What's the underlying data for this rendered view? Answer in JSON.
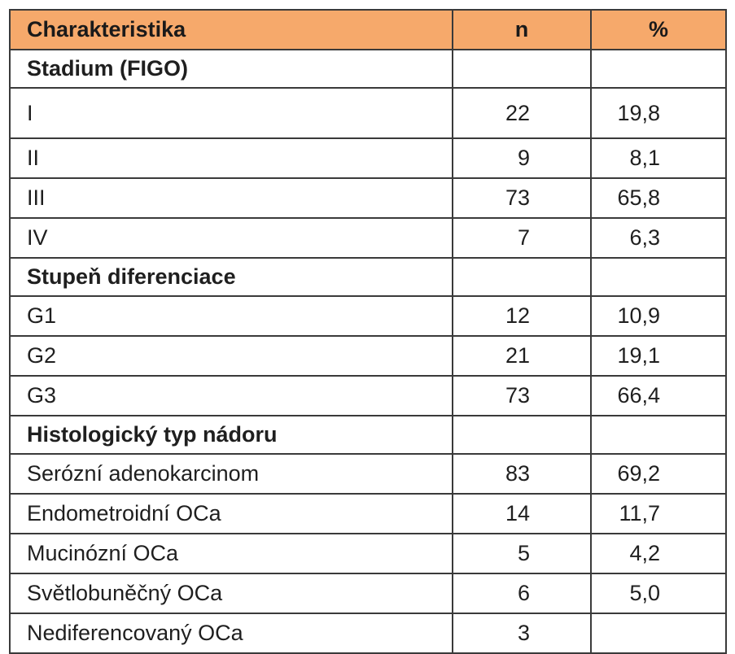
{
  "table": {
    "headers": {
      "characteristic": "Charakteristika",
      "n": "n",
      "percent": "%"
    },
    "sections": [
      {
        "title": "Stadium (FIGO)",
        "rows": [
          {
            "label": "I",
            "n": "22",
            "pct": "19,8"
          },
          {
            "label": "II",
            "n": "9",
            "pct": "8,1"
          },
          {
            "label": "III",
            "n": "73",
            "pct": "65,8"
          },
          {
            "label": "IV",
            "n": "7",
            "pct": "6,3"
          }
        ]
      },
      {
        "title": "Stupeň diferenciace",
        "rows": [
          {
            "label": "G1",
            "n": "12",
            "pct": "10,9"
          },
          {
            "label": "G2",
            "n": "21",
            "pct": "19,1"
          },
          {
            "label": "G3",
            "n": "73",
            "pct": "66,4"
          }
        ]
      },
      {
        "title": "Histologický typ nádoru",
        "rows": [
          {
            "label": "Serózní adenokarcinom",
            "n": "83",
            "pct": "69,2"
          },
          {
            "label": "Endometroidní OCa",
            "n": "14",
            "pct": "11,7"
          },
          {
            "label": "Mucinózní OCa",
            "n": "5",
            "pct": "4,2"
          },
          {
            "label": "Světlobuněčný OCa",
            "n": "6",
            "pct": "5,0"
          },
          {
            "label": "Nediferencovaný OCa",
            "n": "3",
            "pct": ""
          }
        ]
      }
    ]
  },
  "colors": {
    "header_background": "#f6a96b",
    "border": "#3a3a3a"
  }
}
